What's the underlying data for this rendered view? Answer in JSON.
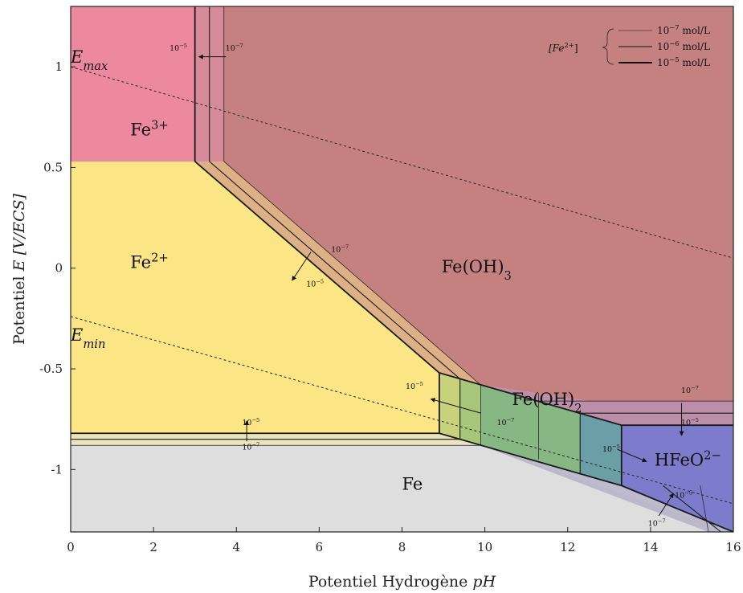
{
  "chart_data": {
    "type": "area",
    "title": "",
    "xlabel": "Potentiel Hydrogène",
    "xlabel_var": "pH",
    "ylabel": "Potentiel",
    "ylabel_var": "E [V/ECS]",
    "xlim": [
      0,
      16
    ],
    "ylim": [
      -1.31,
      1.3
    ],
    "xticks": [
      "0",
      "2",
      "4",
      "6",
      "8",
      "10",
      "12",
      "14",
      "16"
    ],
    "yticks": [
      "1",
      "0.5",
      "0",
      "-0.5",
      "-1"
    ],
    "regions": [
      {
        "label": "Fe",
        "sup": "3+",
        "color": "#ec899f",
        "polygon": [
          [
            0,
            1.3
          ],
          [
            3,
            1.3
          ],
          [
            3,
            0.53
          ],
          [
            0,
            0.53
          ]
        ]
      },
      {
        "label": "Fe",
        "sup": "2+",
        "color": "#fbe584",
        "polygon": [
          [
            0,
            0.53
          ],
          [
            3,
            0.53
          ],
          [
            8.9,
            -0.52
          ],
          [
            8.9,
            -0.82
          ],
          [
            0,
            -0.82
          ]
        ]
      },
      {
        "label": "Fe(OH)",
        "sub": "3",
        "color": "#c58180",
        "polygon": [
          [
            3.7,
            1.3
          ],
          [
            16,
            1.3
          ],
          [
            16,
            -0.66
          ],
          [
            12.5,
            -0.66
          ],
          [
            9.9,
            -0.58
          ],
          [
            3.7,
            0.53
          ]
        ]
      },
      {
        "label": "Fe(OH)",
        "sub": "2",
        "color": "#87b883",
        "polygon": [
          [
            8.9,
            -0.52
          ],
          [
            13.3,
            -0.78
          ],
          [
            13.3,
            -1.08
          ],
          [
            9.9,
            -0.88
          ],
          [
            8.9,
            -0.82
          ]
        ]
      },
      {
        "label": "HFeO",
        "sup": "2−",
        "color": "#7d7ccc",
        "polygon": [
          [
            13.3,
            -0.78
          ],
          [
            16,
            -0.78
          ],
          [
            16,
            -1.31
          ],
          [
            13.3,
            -1.08
          ]
        ]
      },
      {
        "label": "Fe",
        "color": "#dedede",
        "polygon": [
          [
            0,
            -0.88
          ],
          [
            9.9,
            -0.88
          ],
          [
            16,
            -1.31
          ],
          [
            0,
            -1.31
          ]
        ]
      }
    ],
    "boundaries": [
      {
        "conc": "1e-5",
        "points": [
          [
            3,
            1.3
          ],
          [
            3,
            0.53
          ]
        ]
      },
      {
        "conc": "1e-6",
        "points": [
          [
            3.35,
            1.3
          ],
          [
            3.35,
            0.53
          ]
        ]
      },
      {
        "conc": "1e-7",
        "points": [
          [
            3.7,
            1.3
          ],
          [
            3.7,
            0.53
          ]
        ]
      },
      {
        "conc": "1e-5",
        "points": [
          [
            3,
            0.53
          ],
          [
            8.9,
            -0.52
          ]
        ]
      },
      {
        "conc": "1e-6",
        "points": [
          [
            3.35,
            0.53
          ],
          [
            9.4,
            -0.55
          ]
        ]
      },
      {
        "conc": "1e-7",
        "points": [
          [
            3.7,
            0.53
          ],
          [
            9.9,
            -0.58
          ]
        ]
      },
      {
        "conc": "1e-5",
        "points": [
          [
            0,
            -0.82
          ],
          [
            8.9,
            -0.82
          ]
        ]
      },
      {
        "conc": "1e-6",
        "points": [
          [
            0,
            -0.85
          ],
          [
            9.4,
            -0.85
          ]
        ]
      },
      {
        "conc": "1e-7",
        "points": [
          [
            0,
            -0.88
          ],
          [
            9.9,
            -0.88
          ]
        ]
      },
      {
        "conc": "1e-5",
        "points": [
          [
            13.3,
            -0.78
          ],
          [
            16,
            -0.78
          ]
        ]
      },
      {
        "conc": "1e-6",
        "points": [
          [
            12.3,
            -0.72
          ],
          [
            16,
            -0.72
          ]
        ]
      },
      {
        "conc": "1e-7",
        "points": [
          [
            11.3,
            -0.66
          ],
          [
            16,
            -0.66
          ]
        ]
      },
      {
        "conc": "1e-5",
        "points": [
          [
            13.3,
            -1.08
          ],
          [
            16,
            -1.31
          ]
        ]
      },
      {
        "conc": "1e-6",
        "points": [
          [
            14.3,
            -1.08
          ],
          [
            15.7,
            -1.31
          ]
        ]
      },
      {
        "conc": "1e-7",
        "points": [
          [
            15.2,
            -1.08
          ],
          [
            15.4,
            -1.31
          ]
        ]
      },
      {
        "conc": "1e-5",
        "points": [
          [
            8.9,
            -0.52
          ],
          [
            8.9,
            -0.82
          ]
        ]
      },
      {
        "conc": "1e-6",
        "points": [
          [
            9.4,
            -0.55
          ],
          [
            9.4,
            -0.85
          ]
        ]
      },
      {
        "conc": "1e-7",
        "points": [
          [
            9.9,
            -0.58
          ],
          [
            9.9,
            -0.88
          ]
        ]
      },
      {
        "conc": "1e-7",
        "points": [
          [
            11.3,
            -0.62
          ],
          [
            11.3,
            -0.95
          ]
        ]
      },
      {
        "conc": "1e-6",
        "points": [
          [
            12.3,
            -0.71
          ],
          [
            12.3,
            -1.02
          ]
        ]
      },
      {
        "conc": "1e-5",
        "points": [
          [
            13.3,
            -0.78
          ],
          [
            13.3,
            -1.08
          ]
        ]
      },
      {
        "conc": "1e-5",
        "points": [
          [
            8.9,
            -0.52
          ],
          [
            13.3,
            -0.78
          ]
        ]
      },
      {
        "conc": "1e-5",
        "points": [
          [
            8.9,
            -0.82
          ],
          [
            13.3,
            -1.08
          ]
        ]
      }
    ],
    "dashed_lines": [
      {
        "label": "E",
        "sub": "max",
        "points": [
          [
            0,
            1.0
          ],
          [
            16,
            0.05
          ]
        ]
      },
      {
        "label": "E",
        "sub": "min",
        "points": [
          [
            0,
            -0.24
          ],
          [
            16,
            -1.17
          ]
        ]
      }
    ],
    "annotations": [
      {
        "text": "10",
        "sup": "−5",
        "x": 2.6,
        "y": 1.08
      },
      {
        "text": "10",
        "sup": "−7",
        "x": 3.95,
        "y": 1.08
      },
      {
        "text": "10",
        "sup": "−7",
        "x": 6.5,
        "y": 0.08
      },
      {
        "text": "10",
        "sup": "−5",
        "x": 5.9,
        "y": -0.09
      },
      {
        "text": "10",
        "sup": "−5",
        "x": 4.35,
        "y": -0.78
      },
      {
        "text": "10",
        "sup": "−7",
        "x": 4.35,
        "y": -0.9
      },
      {
        "text": "10",
        "sup": "−5",
        "x": 8.3,
        "y": -0.6
      },
      {
        "text": "10",
        "sup": "−7",
        "x": 10.5,
        "y": -0.78
      },
      {
        "text": "10",
        "sup": "−5",
        "x": 13.05,
        "y": -0.91
      },
      {
        "text": "10",
        "sup": "−7",
        "x": 14.95,
        "y": -0.62
      },
      {
        "text": "10",
        "sup": "−5",
        "x": 14.95,
        "y": -0.78
      },
      {
        "text": "10",
        "sup": "−5",
        "x": 14.8,
        "y": -1.14
      },
      {
        "text": "10",
        "sup": "−7",
        "x": 14.15,
        "y": -1.28
      }
    ],
    "legend": {
      "position": "top-right",
      "title": "[Fe",
      "title_sup": "2+",
      "entries": [
        {
          "prefix": "10",
          "sup": "−7",
          "unit": "mol/L",
          "linewidth": "thin"
        },
        {
          "prefix": "10",
          "sup": "−6",
          "unit": "mol/L",
          "linewidth": "medium"
        },
        {
          "prefix": "10",
          "sup": "−5",
          "unit": "mol/L",
          "linewidth": "thick"
        }
      ]
    },
    "grid": false
  }
}
